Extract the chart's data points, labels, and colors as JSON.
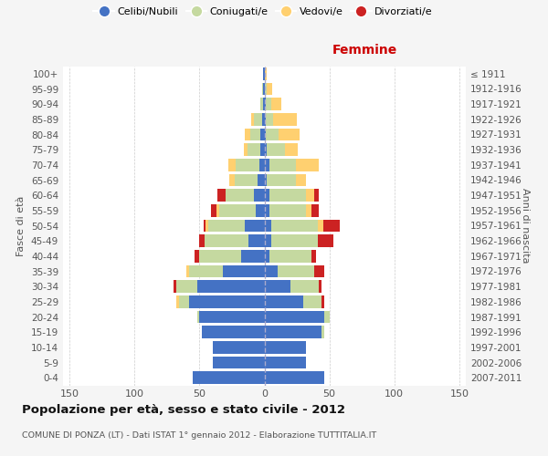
{
  "age_groups": [
    "0-4",
    "5-9",
    "10-14",
    "15-19",
    "20-24",
    "25-29",
    "30-34",
    "35-39",
    "40-44",
    "45-49",
    "50-54",
    "55-59",
    "60-64",
    "65-69",
    "70-74",
    "75-79",
    "80-84",
    "85-89",
    "90-94",
    "95-99",
    "100+"
  ],
  "birth_years": [
    "2007-2011",
    "2002-2006",
    "1997-2001",
    "1992-1996",
    "1987-1991",
    "1982-1986",
    "1977-1981",
    "1972-1976",
    "1967-1971",
    "1962-1966",
    "1957-1961",
    "1952-1956",
    "1947-1951",
    "1942-1946",
    "1937-1941",
    "1932-1936",
    "1927-1931",
    "1922-1926",
    "1917-1921",
    "1912-1916",
    "≤ 1911"
  ],
  "male_celibe": [
    55,
    40,
    40,
    48,
    50,
    58,
    52,
    32,
    18,
    12,
    15,
    7,
    8,
    5,
    4,
    3,
    3,
    2,
    1,
    1,
    1
  ],
  "male_coniugato": [
    0,
    0,
    0,
    0,
    2,
    8,
    16,
    26,
    32,
    34,
    28,
    28,
    22,
    18,
    18,
    10,
    8,
    6,
    2,
    1,
    0
  ],
  "male_vedovo": [
    0,
    0,
    0,
    0,
    0,
    2,
    0,
    2,
    0,
    0,
    2,
    2,
    0,
    4,
    6,
    3,
    4,
    2,
    0,
    0,
    0
  ],
  "male_divorziato": [
    0,
    0,
    0,
    0,
    0,
    0,
    2,
    0,
    4,
    4,
    2,
    4,
    6,
    0,
    0,
    0,
    0,
    0,
    0,
    0,
    0
  ],
  "female_celibe": [
    46,
    32,
    32,
    44,
    46,
    30,
    20,
    10,
    4,
    5,
    5,
    4,
    4,
    2,
    4,
    2,
    1,
    1,
    1,
    0,
    0
  ],
  "female_coniugato": [
    0,
    0,
    0,
    2,
    4,
    14,
    22,
    28,
    32,
    36,
    36,
    28,
    28,
    22,
    20,
    14,
    10,
    6,
    4,
    2,
    0
  ],
  "female_vedovo": [
    0,
    0,
    0,
    0,
    0,
    0,
    0,
    0,
    0,
    0,
    4,
    4,
    6,
    8,
    18,
    10,
    16,
    18,
    8,
    4,
    2
  ],
  "female_divorziato": [
    0,
    0,
    0,
    0,
    0,
    2,
    2,
    8,
    4,
    12,
    13,
    6,
    4,
    0,
    0,
    0,
    0,
    0,
    0,
    0,
    0
  ],
  "colors": {
    "celibe": "#4472C4",
    "coniugato": "#c5d9a0",
    "vedovo": "#FFD070",
    "divorziato": "#CC2222"
  },
  "legend_labels": [
    "Celibi/Nubili",
    "Coniugati/e",
    "Vedovi/e",
    "Divorziati/e"
  ],
  "xlabel_right": "Femmine",
  "ylabel_left": "Fasce di età",
  "ylabel_right": "Anni di nascita",
  "title_main": "Popolazione per età, sesso e stato civile - 2012",
  "title_sub": "COMUNE DI PONZA (LT) - Dati ISTAT 1° gennaio 2012 - Elaborazione TUTTITALIA.IT",
  "xlim": 155,
  "bg_color": "#f5f5f5",
  "plot_bg": "#ffffff",
  "grid_color": "#cccccc"
}
